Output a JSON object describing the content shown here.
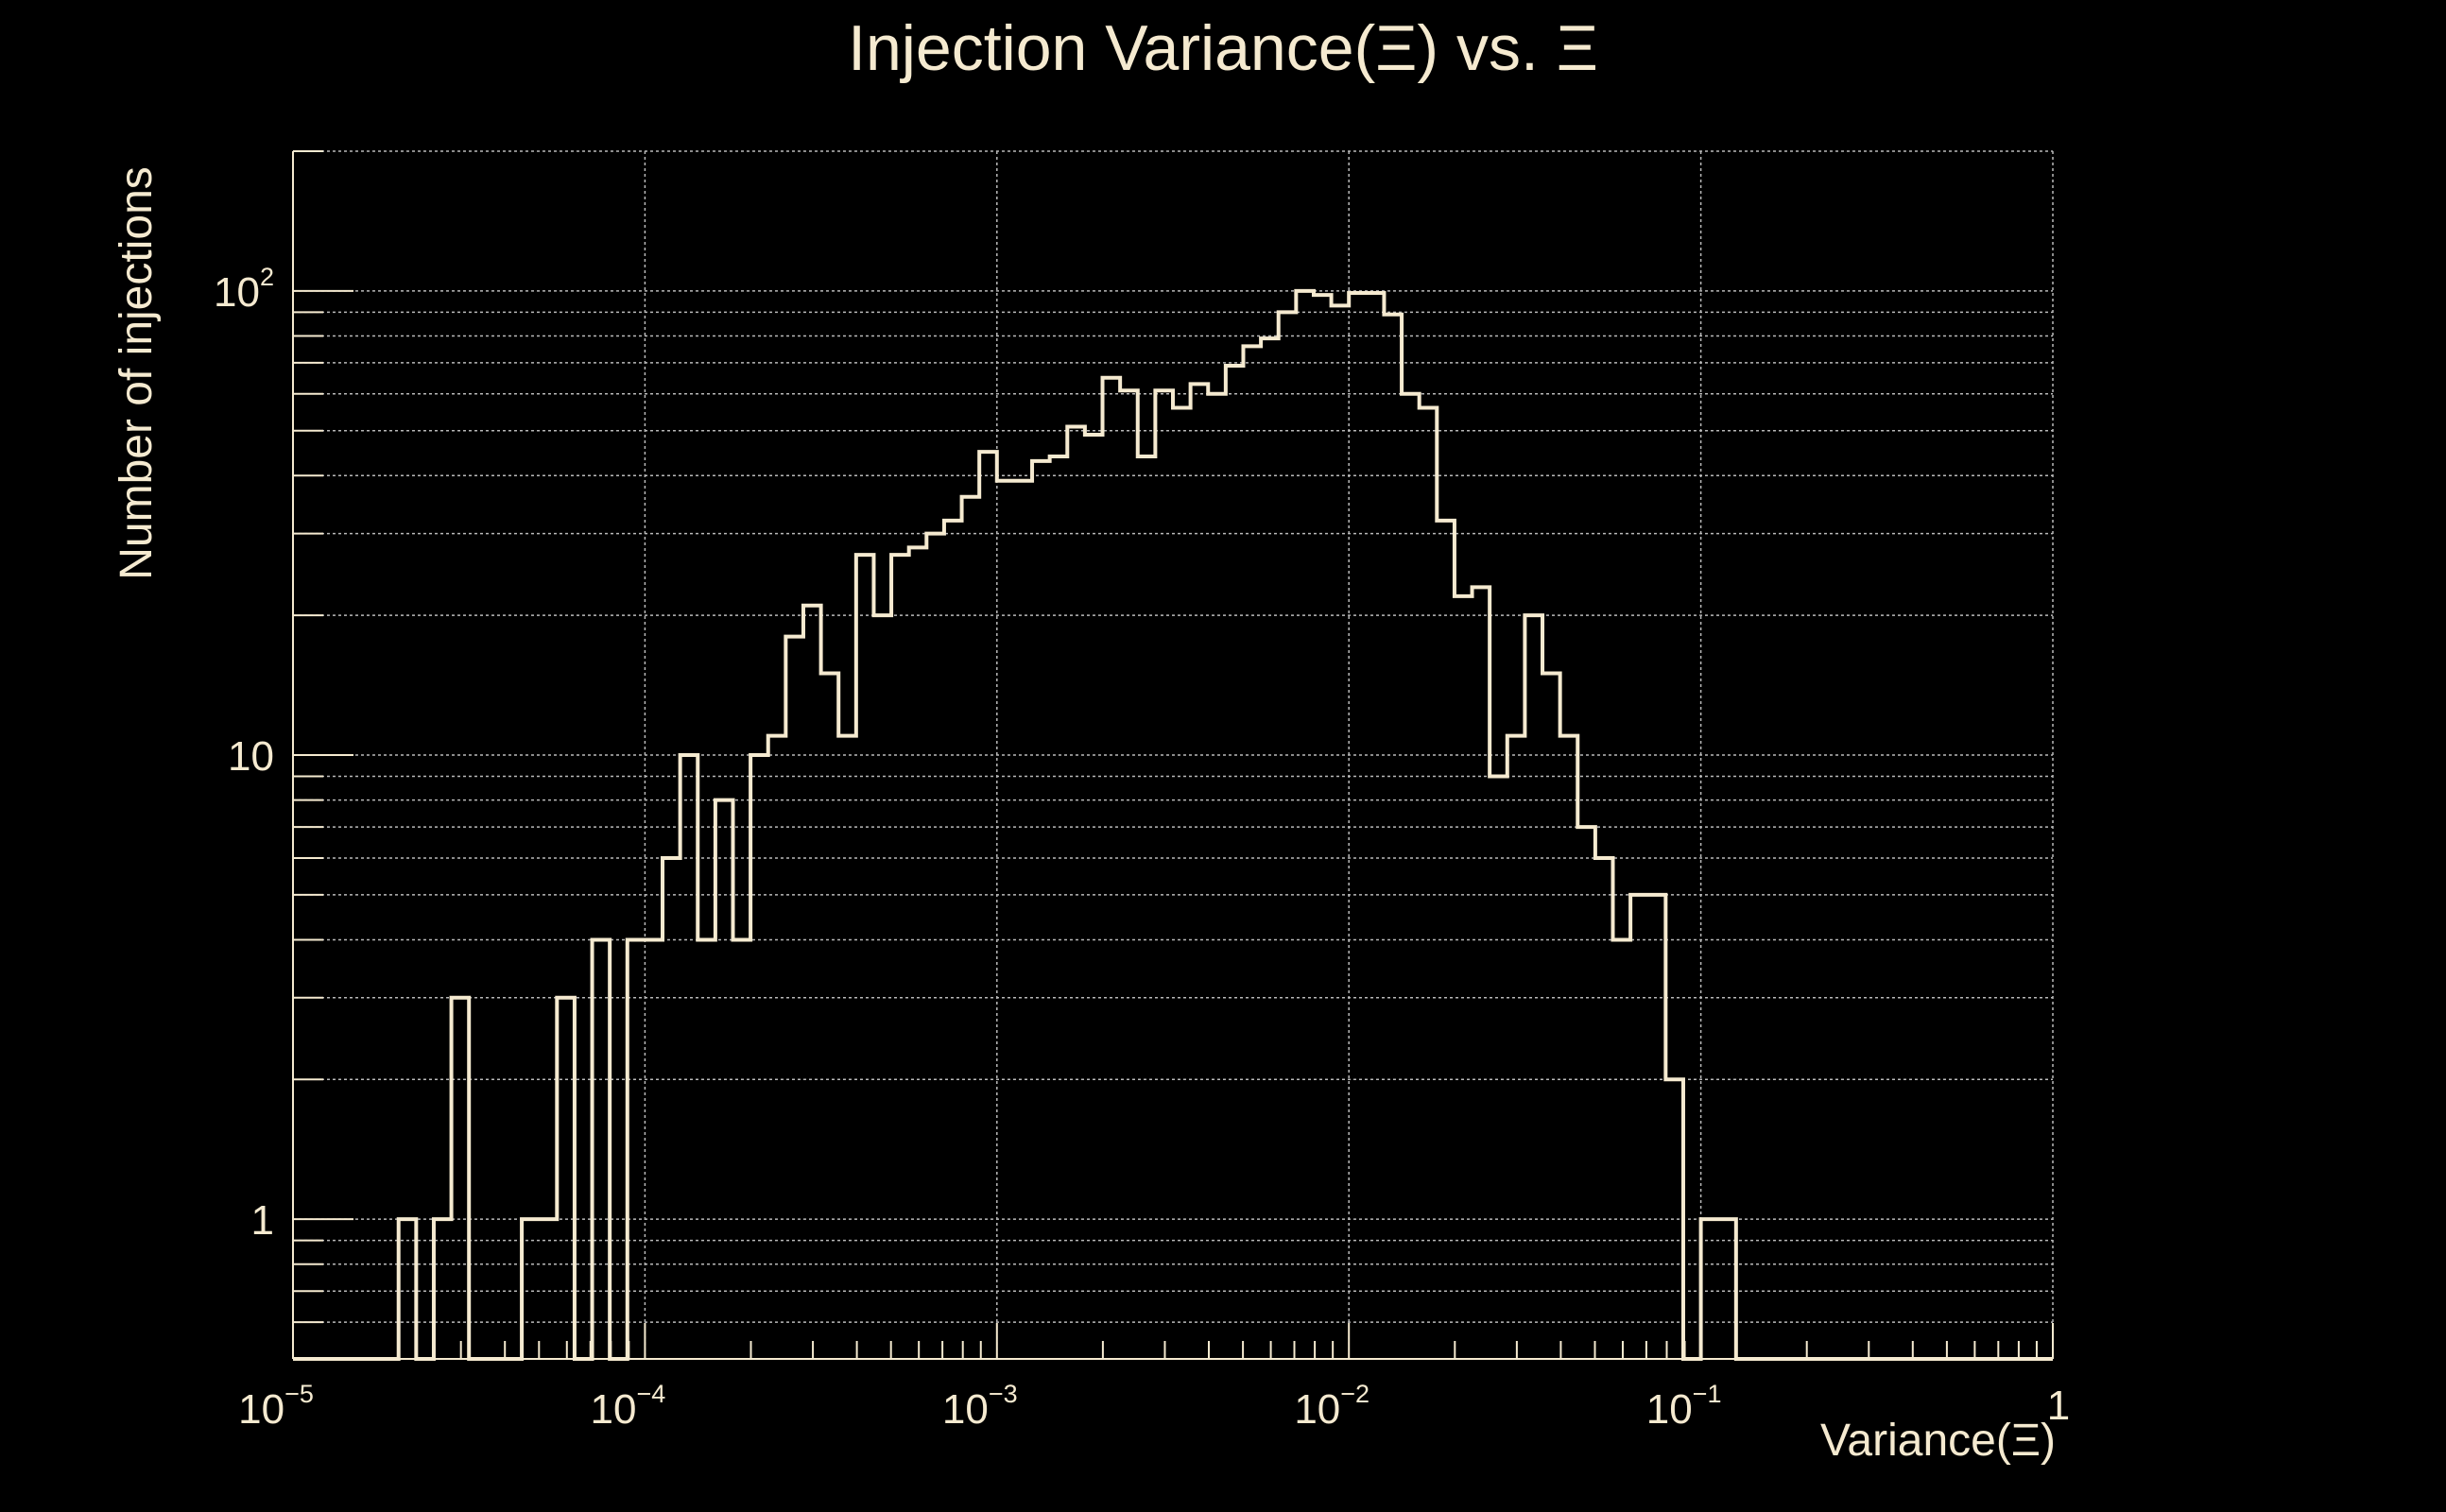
{
  "chart_data": {
    "type": "histogram",
    "title": "Injection Variance(Ξ) vs. Ξ",
    "xlabel": "Variance(Ξ)",
    "ylabel": "Number of injections",
    "x_scale": "log",
    "y_scale": "log",
    "xlim": [
      1e-05,
      1
    ],
    "ylim": [
      0.5,
      200
    ],
    "grid": true,
    "x_ticks": [
      {
        "value": 1e-05,
        "base": "10",
        "exp": "−5"
      },
      {
        "value": 0.0001,
        "base": "10",
        "exp": "−4"
      },
      {
        "value": 0.001,
        "base": "10",
        "exp": "−3"
      },
      {
        "value": 0.01,
        "base": "10",
        "exp": "−2"
      },
      {
        "value": 0.1,
        "base": "10",
        "exp": "−1"
      },
      {
        "value": 1,
        "base": "1",
        "exp": ""
      }
    ],
    "y_ticks": [
      {
        "value": 1,
        "base": "1",
        "exp": ""
      },
      {
        "value": 10,
        "base": "10",
        "exp": ""
      },
      {
        "value": 100,
        "base": "10",
        "exp": "2"
      }
    ],
    "bins_per_decade": 20,
    "counts": [
      0,
      0,
      0,
      0,
      0,
      0,
      1,
      0,
      1,
      3,
      0,
      0,
      0,
      1,
      1,
      3,
      0,
      4,
      0,
      4,
      4,
      6,
      10,
      4,
      8,
      4,
      10,
      11,
      18,
      21,
      15,
      11,
      27,
      20,
      27,
      28,
      30,
      32,
      36,
      45,
      39,
      39,
      43,
      44,
      51,
      49,
      65,
      61,
      44,
      61,
      56,
      63,
      60,
      69,
      76,
      79,
      90,
      100,
      98,
      93,
      99,
      99,
      89,
      60,
      56,
      32,
      22,
      23,
      9,
      11,
      20,
      15,
      11,
      7,
      6,
      4,
      5,
      5,
      2,
      0,
      1,
      1,
      0,
      0,
      0,
      0,
      0,
      0,
      0,
      0,
      0,
      0,
      0,
      0,
      0,
      0,
      0,
      0,
      0,
      0
    ]
  }
}
